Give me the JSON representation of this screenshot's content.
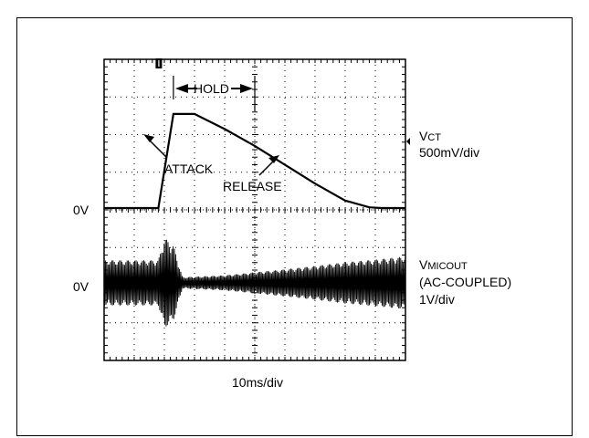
{
  "chart_data": {
    "type": "line",
    "x_scale_label": "10ms/div",
    "divisions": {
      "x": 10,
      "y": 8
    },
    "channels": [
      {
        "name_main": "V",
        "name_sub": "CT",
        "scale": "500mV/div",
        "ground_label": "0V",
        "coupling": "",
        "color": "#000000",
        "x_div": [
          0,
          1.8,
          2.3,
          2.5,
          3.0,
          4.0,
          5.0,
          6.0,
          7.0,
          8.0,
          8.8,
          9.2,
          10
        ],
        "y_div": [
          0,
          0,
          2.5,
          2.5,
          2.5,
          2.1,
          1.65,
          1.15,
          0.65,
          0.2,
          0.02,
          0,
          0
        ]
      },
      {
        "name_main": "V",
        "name_sub": "MICOUT",
        "scale": "1V/div",
        "ground_label": "0V",
        "coupling": "(AC-COUPLED)",
        "color": "#000000",
        "envelope_x_div": [
          0,
          1.8,
          2.0,
          2.3,
          2.6,
          4.0,
          5.0,
          6.0,
          7.0,
          8.0,
          9.0,
          10
        ],
        "envelope_y_div": [
          0.6,
          0.6,
          1.2,
          1.0,
          0.15,
          0.2,
          0.28,
          0.36,
          0.45,
          0.55,
          0.62,
          0.7
        ]
      }
    ],
    "annotations": [
      "HOLD",
      "ATTACK",
      "RELEASE"
    ],
    "trigger_marker": "T"
  }
}
